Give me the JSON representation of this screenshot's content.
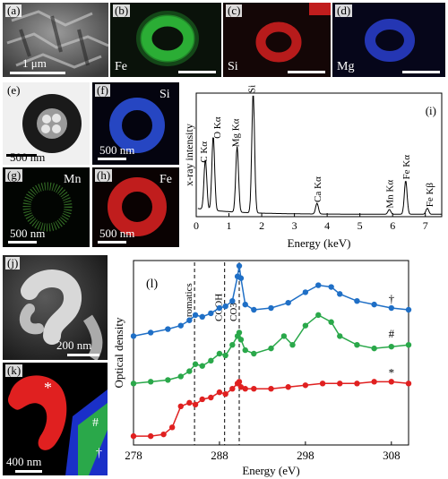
{
  "panels": {
    "a": {
      "label": "(a)",
      "scale": "1 μm"
    },
    "b": {
      "label": "(b)",
      "element": "Fe"
    },
    "c": {
      "label": "(c)",
      "element": "Si"
    },
    "d": {
      "label": "(d)",
      "element": "Mg"
    },
    "e": {
      "label": "(e)",
      "scale": "500 nm"
    },
    "f": {
      "label": "(f)",
      "element": "Si",
      "scale": "500 nm"
    },
    "g": {
      "label": "(g)",
      "element": "Mn",
      "scale": "500 nm"
    },
    "h": {
      "label": "(h)",
      "element": "Fe",
      "scale": "500 nm"
    },
    "j": {
      "label": "(j)",
      "scale": "200 nm"
    },
    "k": {
      "label": "(k)",
      "scale": "400 nm",
      "markers": [
        "*",
        "#",
        "†"
      ]
    }
  },
  "colors": {
    "fe_map": "#2fbf3a",
    "si_map": "#d42020",
    "mg_map": "#2a3fcf",
    "blue_series": "#1f6fc6",
    "green_series": "#2aa84a",
    "red_series": "#e02020"
  },
  "chart_data": [
    {
      "type": "line",
      "panel_label": "(i)",
      "xlabel": "Energy (keV)",
      "ylabel": "x-ray intensity",
      "xlim": [
        0,
        7.5
      ],
      "xticks": [
        0,
        1,
        2,
        3,
        4,
        5,
        6,
        7
      ],
      "peaks": [
        {
          "label": "C Kα",
          "x": 0.28,
          "y": 0.42
        },
        {
          "label": "O Kα",
          "x": 0.52,
          "y": 0.62
        },
        {
          "label": "Mg Kα",
          "x": 1.25,
          "y": 0.55
        },
        {
          "label": "Si Kα",
          "x": 1.74,
          "y": 1.0
        },
        {
          "label": "Ca Kα",
          "x": 3.69,
          "y": 0.09
        },
        {
          "label": "Mn Kα",
          "x": 5.9,
          "y": 0.04
        },
        {
          "label": "Fe Kα",
          "x": 6.4,
          "y": 0.28
        },
        {
          "label": "Fe Kβ",
          "x": 7.06,
          "y": 0.05
        }
      ]
    },
    {
      "type": "line",
      "panel_label": "(l)",
      "xlabel": "Energy (eV)",
      "ylabel": "Optical density",
      "xlim": [
        278,
        310
      ],
      "xticks": [
        278,
        288,
        298,
        308
      ],
      "reference_lines": [
        {
          "label": "aromatics",
          "x": 285.1
        },
        {
          "label": "COOH",
          "x": 288.6
        },
        {
          "label": "CO3",
          "x": 290.3
        }
      ],
      "series": [
        {
          "marker": "†",
          "color": "#1f6fc6",
          "x": [
            278,
            280,
            282,
            283.5,
            284.5,
            285.2,
            286,
            287,
            288,
            288.7,
            289.5,
            290.1,
            290.3,
            290.5,
            291,
            292,
            294,
            296,
            298,
            299.5,
            301,
            302,
            304,
            306,
            308,
            310
          ],
          "y": [
            0.6,
            0.62,
            0.64,
            0.66,
            0.69,
            0.72,
            0.71,
            0.73,
            0.76,
            0.77,
            0.8,
            0.94,
            1.0,
            0.93,
            0.78,
            0.75,
            0.76,
            0.79,
            0.85,
            0.89,
            0.88,
            0.84,
            0.8,
            0.78,
            0.76,
            0.75
          ]
        },
        {
          "marker": "#",
          "color": "#2aa84a",
          "x": [
            278,
            280,
            282,
            283.5,
            284.5,
            285.2,
            286,
            287,
            288,
            288.7,
            289.5,
            290.1,
            290.3,
            290.5,
            291,
            292,
            294,
            295.5,
            296.5,
            298,
            299.5,
            301,
            302,
            304,
            306,
            308,
            310
          ],
          "y": [
            0.33,
            0.34,
            0.35,
            0.37,
            0.4,
            0.44,
            0.43,
            0.46,
            0.5,
            0.49,
            0.55,
            0.6,
            0.62,
            0.58,
            0.52,
            0.5,
            0.53,
            0.6,
            0.55,
            0.66,
            0.72,
            0.68,
            0.6,
            0.55,
            0.53,
            0.54,
            0.55
          ]
        },
        {
          "marker": "*",
          "color": "#e02020",
          "x": [
            278,
            280,
            281.5,
            282.5,
            283.5,
            284.5,
            285.2,
            286,
            287,
            288,
            288.7,
            289.5,
            290.1,
            290.3,
            290.5,
            291,
            292,
            294,
            296,
            298,
            300,
            302,
            304,
            306,
            308,
            310
          ],
          "y": [
            0.03,
            0.03,
            0.04,
            0.08,
            0.2,
            0.22,
            0.21,
            0.24,
            0.25,
            0.28,
            0.27,
            0.3,
            0.33,
            0.34,
            0.31,
            0.3,
            0.3,
            0.3,
            0.31,
            0.32,
            0.33,
            0.33,
            0.33,
            0.34,
            0.34,
            0.33
          ]
        }
      ]
    }
  ]
}
